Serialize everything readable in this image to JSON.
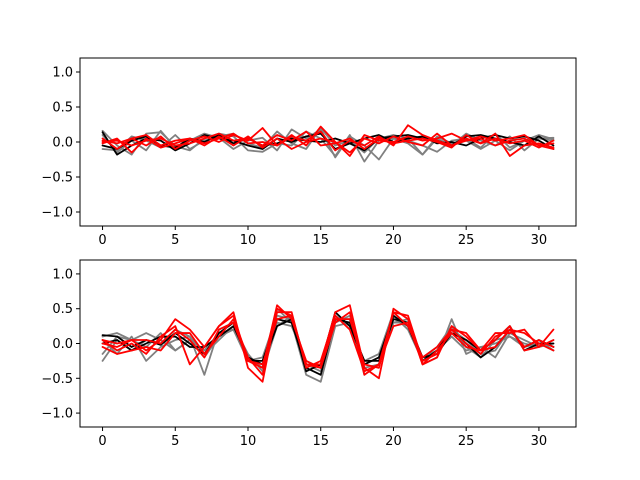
{
  "chart_data": [
    {
      "type": "line",
      "title": "",
      "xlabel": "",
      "ylabel": "",
      "xlim": [
        -1.55,
        32.55
      ],
      "ylim": [
        -1.2,
        1.2
      ],
      "xticks": [
        0,
        5,
        10,
        15,
        20,
        25,
        30
      ],
      "yticks": [
        -1.0,
        -0.5,
        0.0,
        0.5,
        1.0
      ],
      "ytick_labels": [
        "−1.0",
        "−0.5",
        "0.0",
        "0.5",
        "1.0"
      ],
      "grid": false,
      "series": [
        {
          "color": "#808080",
          "values": [
            0.16,
            -0.05,
            -0.18,
            0.12,
            0.14,
            -0.06,
            -0.12,
            0.05,
            0.12,
            0.08,
            -0.12,
            -0.14,
            -0.02,
            -0.05,
            0.15,
            0.05,
            -0.2,
            0.1,
            -0.28,
            0.02,
            0.05,
            -0.02,
            -0.18,
            0.08,
            -0.02,
            0.02,
            -0.1,
            0.02,
            -0.12,
            0.02,
            0.1,
            0.04
          ]
        },
        {
          "color": "#808080",
          "values": [
            0.1,
            -0.15,
            0.02,
            -0.12,
            0.16,
            -0.08,
            0.02,
            0.12,
            0.06,
            -0.1,
            0.02,
            0.06,
            -0.12,
            0.18,
            0.05,
            0.18,
            -0.22,
            0.08,
            -0.05,
            -0.25,
            0.05,
            0.02,
            -0.05,
            -0.14,
            0.02,
            0.05,
            -0.08,
            0.12,
            -0.08,
            0.02,
            0.05,
            0.02
          ]
        },
        {
          "color": "#808080",
          "values": [
            -0.1,
            -0.12,
            0.08,
            0.02,
            -0.08,
            0.1,
            -0.1,
            0.02,
            0.08,
            0.12,
            -0.02,
            -0.08,
            0.15,
            -0.02,
            -0.1,
            0.2,
            -0.05,
            0.02,
            -0.15,
            0.05,
            0.1,
            0.05,
            -0.18,
            0.05,
            -0.05,
            0.12,
            0.02,
            -0.05,
            0.08,
            -0.12,
            0.05,
            0.06
          ]
        },
        {
          "color": "#000000",
          "values": [
            0.14,
            -0.18,
            -0.05,
            0.05,
            0.02,
            -0.12,
            -0.02,
            0.1,
            0.05,
            0.02,
            -0.05,
            -0.1,
            0.05,
            0.0,
            0.08,
            0.12,
            -0.1,
            -0.02,
            -0.12,
            0.05,
            0.08,
            0.1,
            0.05,
            0.02,
            -0.05,
            0.08,
            0.1,
            0.05,
            0.0,
            -0.05,
            0.08,
            -0.05
          ]
        },
        {
          "color": "#000000",
          "values": [
            -0.05,
            -0.1,
            0.02,
            0.08,
            -0.05,
            -0.08,
            0.05,
            0.0,
            0.1,
            -0.02,
            0.05,
            -0.05,
            -0.02,
            0.05,
            0.02,
            0.0,
            0.05,
            -0.02,
            0.05,
            0.1,
            0.0,
            0.05,
            0.08,
            -0.02,
            0.0,
            -0.05,
            0.05,
            0.1,
            0.05,
            0.08,
            0.02,
            -0.1
          ]
        },
        {
          "color": "#ff0000",
          "values": [
            0.02,
            -0.02,
            0.05,
            -0.05,
            0.08,
            -0.1,
            0.02,
            0.08,
            0.0,
            0.1,
            0.02,
            0.2,
            -0.05,
            0.08,
            0.02,
            0.15,
            -0.12,
            0.02,
            -0.05,
            0.08,
            -0.05,
            0.24,
            0.1,
            0.02,
            -0.05,
            0.05,
            -0.02,
            0.12,
            -0.2,
            -0.05,
            -0.02,
            -0.08
          ]
        },
        {
          "color": "#ff0000",
          "values": [
            -0.02,
            0.05,
            -0.15,
            0.05,
            -0.08,
            -0.02,
            0.05,
            -0.05,
            0.08,
            -0.05,
            0.08,
            -0.08,
            0.05,
            -0.1,
            0.0,
            0.05,
            0.0,
            -0.15,
            0.05,
            -0.02,
            0.08,
            0.0,
            -0.05,
            0.12,
            -0.05,
            0.02,
            0.05,
            -0.05,
            0.02,
            0.05,
            -0.05,
            -0.1
          ]
        },
        {
          "color": "#ff0000",
          "values": [
            0.05,
            -0.1,
            0.05,
            0.1,
            -0.05,
            0.02,
            0.05,
            -0.02,
            0.05,
            0.12,
            -0.02,
            0.0,
            -0.05,
            0.1,
            -0.05,
            0.22,
            0.0,
            -0.2,
            0.1,
            0.02,
            0.0,
            0.08,
            0.02,
            0.05,
            0.12,
            0.02,
            0.08,
            0.02,
            0.05,
            0.1,
            -0.05,
            -0.02
          ]
        },
        {
          "color": "#ff0000",
          "values": [
            0.0,
            0.02,
            -0.05,
            0.02,
            0.05,
            -0.05,
            -0.02,
            0.05,
            0.12,
            0.02,
            0.05,
            -0.05,
            0.1,
            0.02,
            0.15,
            -0.05,
            -0.02,
            0.05,
            -0.1,
            0.05,
            -0.02,
            0.02,
            0.05,
            0.0,
            -0.08,
            0.1,
            -0.02,
            0.05,
            -0.02,
            0.02,
            -0.08,
            0.02
          ]
        }
      ]
    },
    {
      "type": "line",
      "title": "",
      "xlabel": "",
      "ylabel": "",
      "xlim": [
        -1.55,
        32.55
      ],
      "ylim": [
        -1.2,
        1.2
      ],
      "xticks": [
        0,
        5,
        10,
        15,
        20,
        25,
        30
      ],
      "yticks": [
        -1.0,
        -0.5,
        0.0,
        0.5,
        1.0
      ],
      "ytick_labels": [
        "−1.0",
        "−0.5",
        "0.0",
        "0.5",
        "1.0"
      ],
      "grid": false,
      "series": [
        {
          "color": "#808080",
          "values": [
            -0.25,
            0.05,
            -0.1,
            0.05,
            0.0,
            0.2,
            0.1,
            -0.45,
            0.2,
            0.3,
            -0.2,
            -0.3,
            0.5,
            0.3,
            -0.45,
            -0.55,
            0.25,
            0.3,
            -0.35,
            -0.3,
            0.3,
            0.35,
            -0.3,
            -0.2,
            0.35,
            -0.15,
            -0.05,
            -0.2,
            0.15,
            0.05,
            -0.05,
            0.05
          ]
        },
        {
          "color": "#808080",
          "values": [
            0.1,
            0.15,
            0.05,
            -0.05,
            0.15,
            -0.1,
            0.05,
            -0.2,
            0.1,
            0.2,
            -0.25,
            -0.2,
            0.4,
            0.35,
            -0.3,
            -0.4,
            0.4,
            0.25,
            -0.25,
            -0.15,
            0.45,
            0.25,
            -0.2,
            -0.1,
            0.2,
            0.05,
            -0.15,
            -0.1,
            0.2,
            -0.05,
            0.05,
            -0.1
          ]
        },
        {
          "color": "#808080",
          "values": [
            0.05,
            -0.15,
            0.1,
            -0.25,
            -0.05,
            0.05,
            0.1,
            -0.15,
            0.05,
            0.25,
            -0.15,
            -0.4,
            0.25,
            0.4,
            -0.3,
            -0.3,
            0.35,
            0.35,
            -0.45,
            -0.3,
            0.3,
            0.3,
            -0.2,
            -0.05,
            0.25,
            -0.05,
            -0.2,
            0.05,
            0.1,
            0.0,
            -0.05,
            0.0
          ]
        },
        {
          "color": "#808080",
          "values": [
            -0.15,
            0.1,
            0.05,
            0.15,
            0.05,
            -0.1,
            0.05,
            -0.1,
            0.15,
            0.2,
            -0.2,
            -0.35,
            0.3,
            0.25,
            -0.25,
            -0.35,
            0.3,
            0.4,
            -0.3,
            -0.2,
            0.4,
            0.2,
            -0.25,
            -0.1,
            0.1,
            -0.1,
            -0.05,
            0.0,
            0.1,
            -0.05,
            0.0,
            -0.1
          ]
        },
        {
          "color": "#000000",
          "values": [
            0.12,
            0.1,
            -0.05,
            0.05,
            -0.02,
            0.15,
            0.0,
            -0.15,
            0.15,
            0.3,
            -0.25,
            -0.25,
            0.35,
            0.3,
            -0.35,
            -0.45,
            0.35,
            0.3,
            -0.3,
            -0.2,
            0.4,
            0.25,
            -0.25,
            -0.1,
            0.2,
            0.0,
            -0.2,
            -0.05,
            0.2,
            -0.05,
            0.05,
            -0.05
          ]
        },
        {
          "color": "#000000",
          "values": [
            0.0,
            0.05,
            -0.1,
            0.0,
            0.1,
            0.1,
            -0.05,
            -0.05,
            0.1,
            0.25,
            -0.2,
            -0.3,
            0.25,
            0.35,
            -0.4,
            -0.3,
            0.45,
            0.25,
            -0.25,
            -0.25,
            0.35,
            0.3,
            -0.2,
            -0.15,
            0.15,
            0.05,
            -0.1,
            0.05,
            0.25,
            -0.1,
            0.0,
            0.0
          ]
        },
        {
          "color": "#ff0000",
          "values": [
            0.0,
            -0.05,
            0.05,
            -0.1,
            0.05,
            0.35,
            0.2,
            -0.05,
            0.25,
            0.45,
            -0.35,
            -0.55,
            0.5,
            0.4,
            -0.3,
            -0.3,
            0.45,
            0.55,
            -0.35,
            -0.5,
            0.5,
            0.35,
            -0.3,
            -0.2,
            0.25,
            0.1,
            -0.1,
            0.05,
            0.25,
            -0.1,
            -0.05,
            0.2
          ]
        },
        {
          "color": "#ff0000",
          "values": [
            0.05,
            -0.1,
            0.0,
            -0.15,
            0.1,
            0.25,
            -0.3,
            -0.05,
            0.25,
            0.4,
            -0.25,
            -0.35,
            0.55,
            0.35,
            -0.25,
            -0.35,
            0.3,
            0.45,
            -0.45,
            -0.3,
            0.45,
            0.4,
            -0.25,
            -0.15,
            0.2,
            0.15,
            -0.1,
            -0.05,
            0.2,
            0.15,
            0.0,
            -0.1
          ]
        },
        {
          "color": "#ff0000",
          "values": [
            -0.05,
            -0.15,
            -0.1,
            -0.05,
            -0.1,
            0.15,
            0.15,
            -0.15,
            0.1,
            0.35,
            -0.2,
            -0.45,
            0.45,
            0.45,
            -0.35,
            -0.25,
            0.4,
            0.2,
            -0.4,
            -0.3,
            0.25,
            0.3,
            -0.3,
            -0.1,
            0.15,
            -0.05,
            -0.1,
            0.15,
            0.15,
            0.2,
            -0.05,
            0.05
          ]
        },
        {
          "color": "#ff0000",
          "values": [
            0.05,
            0.0,
            0.05,
            0.05,
            0.0,
            0.2,
            0.05,
            -0.2,
            0.2,
            0.3,
            -0.25,
            -0.3,
            0.35,
            0.4,
            -0.3,
            -0.35,
            0.35,
            0.35,
            -0.3,
            -0.35,
            0.45,
            0.25,
            -0.2,
            -0.05,
            0.2,
            0.0,
            -0.15,
            0.1,
            0.2,
            -0.05,
            0.05,
            -0.05
          ]
        }
      ]
    }
  ]
}
